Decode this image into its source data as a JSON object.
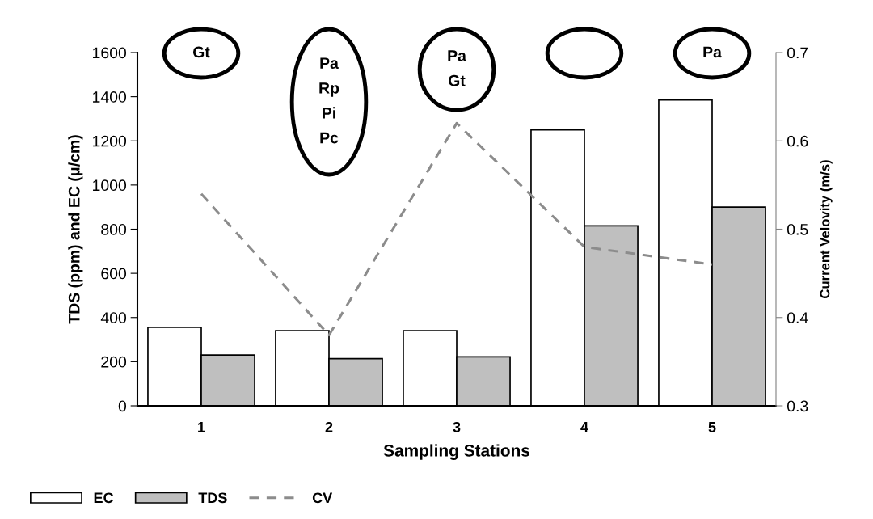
{
  "chart_data": {
    "type": "bar",
    "categories": [
      "1",
      "2",
      "3",
      "4",
      "5"
    ],
    "xlabel": "Sampling Stations",
    "ylabel": "TDS (ppm) and EC (μ/cm)",
    "y2label": "Current Velovity (m/s)",
    "series": [
      {
        "name": "EC",
        "color": "#ffffff",
        "values": [
          355,
          340,
          340,
          1250,
          1385
        ]
      },
      {
        "name": "TDS",
        "color": "#bfbfbf",
        "values": [
          230,
          214,
          222,
          815,
          900
        ]
      },
      {
        "name": "CV",
        "type": "line",
        "axis": "y2",
        "color": "#8c8c8c",
        "line_style": "dashed",
        "marker": "none",
        "values": [
          0.54,
          0.38,
          0.62,
          0.48,
          0.46
        ]
      }
    ],
    "ylim": [
      0,
      1600
    ],
    "yticks": [
      0,
      200,
      400,
      600,
      800,
      1000,
      1200,
      1400,
      1600
    ],
    "y2lim": [
      0.3,
      0.7
    ],
    "y2ticks": [
      0.3,
      0.4,
      0.5,
      0.6,
      0.7
    ],
    "annotations": [
      "Gt",
      "Pa\nRp\nPi\nPc",
      "Pa\nGt",
      null,
      "Pa"
    ],
    "grid": false,
    "legend": "bottom left"
  }
}
